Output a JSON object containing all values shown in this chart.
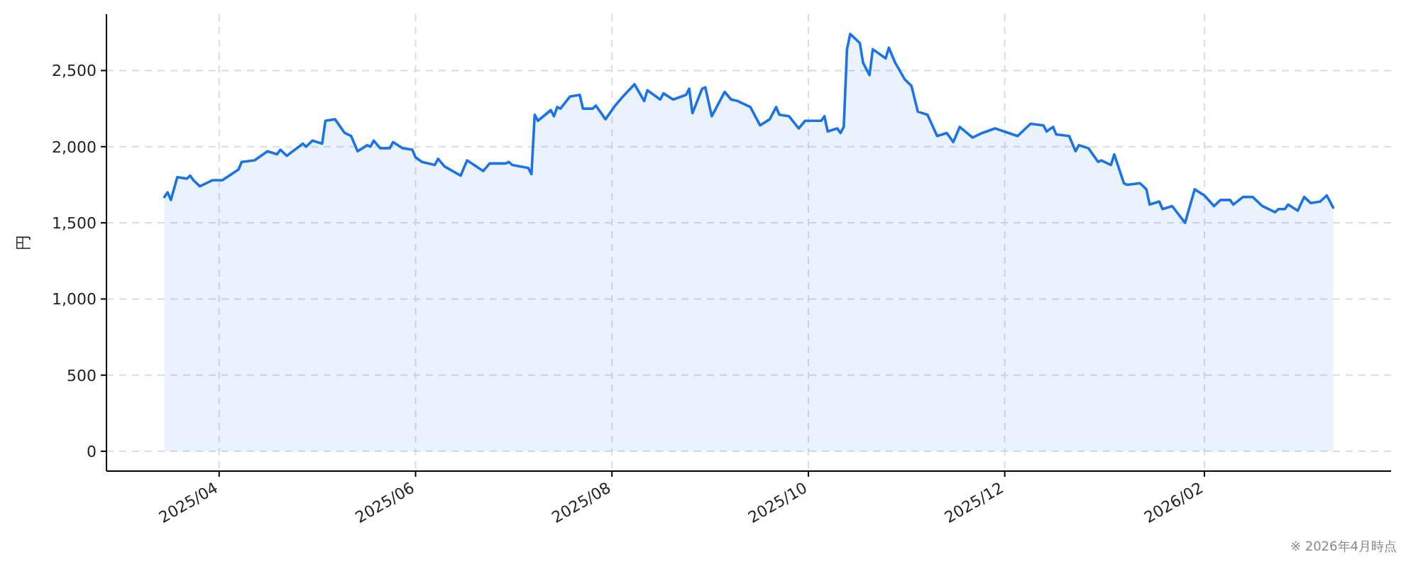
{
  "chart_data": {
    "type": "area",
    "ylabel": "円",
    "annotations": [
      "※ 2026年4月時点"
    ],
    "grid": true,
    "xlim": [
      "2025-02-25",
      "2026-03-31"
    ],
    "ylim": [
      -130,
      2870
    ],
    "xticks": [
      {
        "value": "2025-04-01",
        "label": "2025/04"
      },
      {
        "value": "2025-06-01",
        "label": "2025/06"
      },
      {
        "value": "2025-08-01",
        "label": "2025/08"
      },
      {
        "value": "2025-10-01",
        "label": "2025/10"
      },
      {
        "value": "2025-12-01",
        "label": "2025/12"
      },
      {
        "value": "2026-02-01",
        "label": "2026/02"
      }
    ],
    "yticks": [
      0,
      500,
      {
        "value": 1000,
        "label": "1,000"
      },
      {
        "value": 1500,
        "label": "1,500"
      },
      {
        "value": 2000,
        "label": "2,000"
      },
      {
        "value": 2500,
        "label": "2,500"
      }
    ],
    "series": [
      {
        "color": "#1a73e8",
        "x": [
          "2025-03-15",
          "2025-03-16",
          "2025-03-17",
          "2025-03-19",
          "2025-03-22",
          "2025-03-23",
          "2025-03-24",
          "2025-03-26",
          "2025-03-30",
          "2025-04-02",
          "2025-04-07",
          "2025-04-08",
          "2025-04-12",
          "2025-04-16",
          "2025-04-19",
          "2025-04-20",
          "2025-04-22",
          "2025-04-27",
          "2025-04-28",
          "2025-04-30",
          "2025-05-03",
          "2025-05-04",
          "2025-05-07",
          "2025-05-10",
          "2025-05-12",
          "2025-05-14",
          "2025-05-17",
          "2025-05-18",
          "2025-05-19",
          "2025-05-21",
          "2025-05-24",
          "2025-05-25",
          "2025-05-28",
          "2025-05-31",
          "2025-06-01",
          "2025-06-03",
          "2025-06-07",
          "2025-06-08",
          "2025-06-10",
          "2025-06-15",
          "2025-06-17",
          "2025-06-22",
          "2025-06-24",
          "2025-06-29",
          "2025-06-30",
          "2025-07-01",
          "2025-07-06",
          "2025-07-07",
          "2025-07-08",
          "2025-07-09",
          "2025-07-13",
          "2025-07-14",
          "2025-07-15",
          "2025-07-16",
          "2025-07-19",
          "2025-07-22",
          "2025-07-23",
          "2025-07-26",
          "2025-07-27",
          "2025-07-30",
          "2025-08-02",
          "2025-08-04",
          "2025-08-08",
          "2025-08-11",
          "2025-08-12",
          "2025-08-16",
          "2025-08-17",
          "2025-08-20",
          "2025-08-24",
          "2025-08-25",
          "2025-08-26",
          "2025-08-29",
          "2025-08-30",
          "2025-09-01",
          "2025-09-05",
          "2025-09-07",
          "2025-09-09",
          "2025-09-13",
          "2025-09-16",
          "2025-09-19",
          "2025-09-21",
          "2025-09-22",
          "2025-09-25",
          "2025-09-28",
          "2025-09-30",
          "2025-10-05",
          "2025-10-06",
          "2025-10-07",
          "2025-10-10",
          "2025-10-11",
          "2025-10-12",
          "2025-10-13",
          "2025-10-14",
          "2025-10-17",
          "2025-10-18",
          "2025-10-20",
          "2025-10-21",
          "2025-10-25",
          "2025-10-26",
          "2025-10-28",
          "2025-10-31",
          "2025-11-02",
          "2025-11-04",
          "2025-11-07",
          "2025-11-10",
          "2025-11-13",
          "2025-11-15",
          "2025-11-17",
          "2025-11-21",
          "2025-11-24",
          "2025-11-28",
          "2025-12-05",
          "2025-12-09",
          "2025-12-13",
          "2025-12-14",
          "2025-12-16",
          "2025-12-17",
          "2025-12-21",
          "2025-12-23",
          "2025-12-24",
          "2025-12-27",
          "2025-12-28",
          "2025-12-30",
          "2025-12-31",
          "2026-01-03",
          "2026-01-04",
          "2026-01-07",
          "2026-01-08",
          "2026-01-12",
          "2026-01-14",
          "2026-01-15",
          "2026-01-18",
          "2026-01-19",
          "2026-01-22",
          "2026-01-26",
          "2026-01-29",
          "2026-02-01",
          "2026-02-04",
          "2026-02-06",
          "2026-02-09",
          "2026-02-10",
          "2026-02-13",
          "2026-02-16",
          "2026-02-19",
          "2026-02-23",
          "2026-02-24",
          "2026-02-26",
          "2026-02-27",
          "2026-03-02",
          "2026-03-04",
          "2026-03-06",
          "2026-03-09",
          "2026-03-11",
          "2026-03-13"
        ],
        "values": [
          1670,
          1700,
          1650,
          1800,
          1790,
          1810,
          1780,
          1740,
          1780,
          1780,
          1850,
          1900,
          1910,
          1970,
          1950,
          1980,
          1940,
          2020,
          2000,
          2040,
          2020,
          2170,
          2180,
          2090,
          2070,
          1970,
          2010,
          2000,
          2040,
          1990,
          1990,
          2030,
          1990,
          1980,
          1930,
          1900,
          1880,
          1920,
          1870,
          1810,
          1910,
          1840,
          1890,
          1890,
          1900,
          1880,
          1860,
          1820,
          2210,
          2170,
          2240,
          2200,
          2260,
          2250,
          2330,
          2340,
          2250,
          2250,
          2270,
          2180,
          2270,
          2320,
          2410,
          2300,
          2370,
          2310,
          2350,
          2310,
          2340,
          2380,
          2220,
          2380,
          2390,
          2200,
          2360,
          2310,
          2300,
          2260,
          2140,
          2180,
          2260,
          2210,
          2200,
          2120,
          2170,
          2170,
          2200,
          2100,
          2120,
          2090,
          2130,
          2640,
          2740,
          2680,
          2550,
          2470,
          2640,
          2580,
          2650,
          2550,
          2440,
          2400,
          2230,
          2210,
          2070,
          2090,
          2030,
          2130,
          2060,
          2090,
          2120,
          2070,
          2150,
          2140,
          2100,
          2130,
          2080,
          2070,
          1970,
          2010,
          1990,
          1960,
          1900,
          1910,
          1880,
          1950,
          1760,
          1750,
          1760,
          1720,
          1620,
          1640,
          1590,
          1610,
          1500,
          1720,
          1680,
          1610,
          1650,
          1650,
          1620,
          1670,
          1670,
          1610,
          1570,
          1590,
          1590,
          1620,
          1580,
          1670,
          1630,
          1640,
          1680,
          1600
        ]
      }
    ]
  }
}
